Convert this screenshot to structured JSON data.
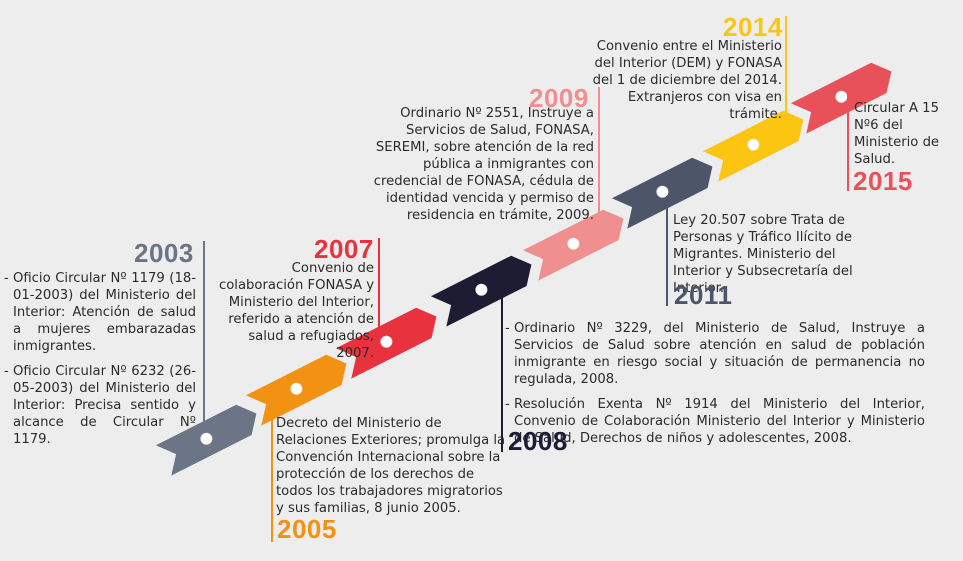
{
  "colors": {
    "s2003": "#6b7586",
    "s2005": "#f29112",
    "s2007": "#e8323e",
    "s2008": "#1d1c33",
    "s2009": "#f08f8f",
    "s2011": "#4d5668",
    "s2014": "#fbc512",
    "s2015": "#e85159"
  },
  "events": {
    "e2003": {
      "year": "2003",
      "items": [
        {
          "dash": "-",
          "text": "Oficio Circular Nº 1179 (18-01-2003) del Ministerio del Interior: Atención de salud a mujeres embarazadas inmigrantes."
        },
        {
          "dash": "-",
          "text": "Oficio Circular Nº 6232 (26-05-2003) del Ministerio del Interior: Precisa sentido y alcance de Circular Nº 1179."
        }
      ]
    },
    "e2005": {
      "year": "2005",
      "text": "Decreto del Ministerio de Relaciones Exteriores; promulga la Convención Internacional sobre la protección de los derechos de todos los trabajadores migratorios y sus familias, 8 junio 2005."
    },
    "e2007": {
      "year": "2007",
      "text": "Convenio de colaboración FONASA y Ministerio del Interior, referido a atención de salud a refugiados, 2007."
    },
    "e2008": {
      "year": "2008",
      "items": [
        {
          "dash": "-",
          "text": "Ordinario Nº 3229, del Ministerio de Salud, Instruye a Servicios de Salud sobre atención en salud de población inmigrante en riesgo social y situación de permanencia no regulada, 2008."
        },
        {
          "dash": "-",
          "text": "Resolución Exenta Nº 1914 del Ministerio del Interior, Convenio de Colaboración Ministerio del Interior y Ministerio de Salud, Derechos de niños y adolescentes, 2008."
        }
      ]
    },
    "e2009": {
      "year": "2009",
      "text": "Ordinario Nº 2551, Instruye a Servicios de Salud, FONASA, SEREMI, sobre atención de la red pública a inmigrantes con credencial de FONASA, cédula de identidad vencida y permiso de residencia en trámite, 2009."
    },
    "e2011": {
      "year": "2011",
      "text": "Ley 20.507 sobre Trata de Personas y Tráfico Ilícito de Migrantes. Ministerio del Interior y Subsecretaría del Interior."
    },
    "e2014": {
      "year": "2014",
      "text": "Convenio entre el Ministerio del Interior (DEM) y FONASA del 1 de diciembre del 2014. Extranjeros con visa en trámite."
    },
    "e2015": {
      "year": "2015",
      "text": "Circular A 15 Nº6 del Ministerio de Salud."
    }
  }
}
